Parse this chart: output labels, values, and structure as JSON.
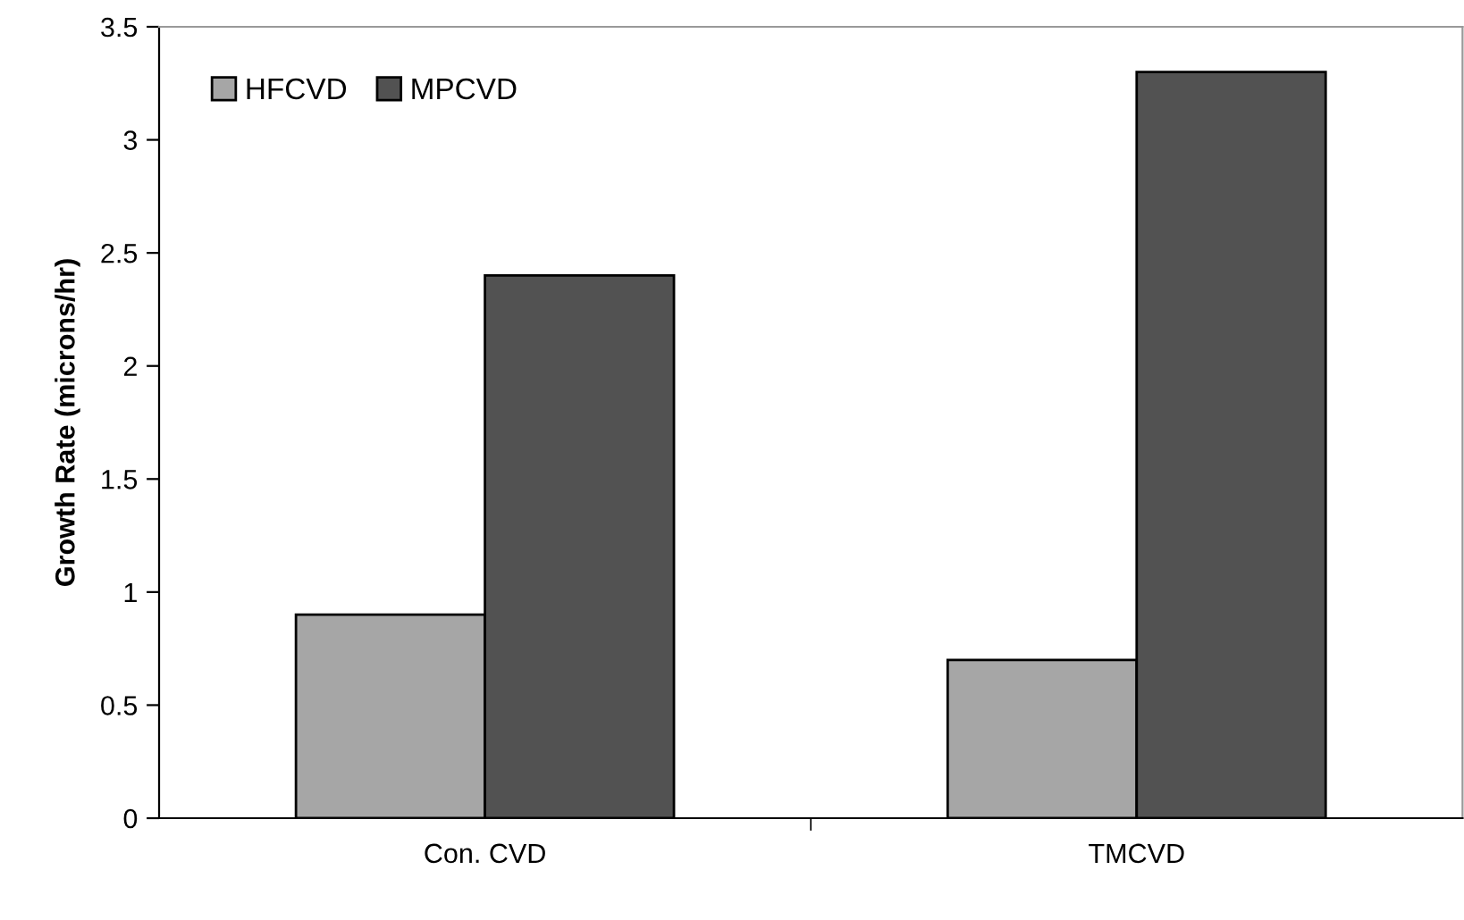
{
  "chart_data": {
    "type": "bar",
    "ylabel": "Growth Rate (microns/hr)",
    "categories": [
      "Con. CVD",
      "TMCVD"
    ],
    "series": [
      {
        "name": "HFCVD",
        "color": "#a6a6a6",
        "values": [
          0.9,
          0.7
        ]
      },
      {
        "name": "MPCVD",
        "color": "#525252",
        "values": [
          2.4,
          3.3
        ]
      }
    ],
    "ylim": [
      0,
      3.5
    ],
    "yticks": [
      0,
      0.5,
      1,
      1.5,
      2,
      2.5,
      3,
      3.5
    ],
    "grid": false,
    "legend": "top left"
  }
}
